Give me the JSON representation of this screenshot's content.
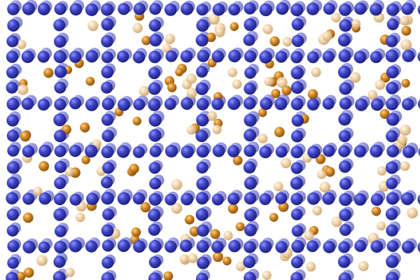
{
  "scene": {
    "background_color": "#ffffff",
    "lattice_atom": {
      "color_highlight": "#8c92ff",
      "color_mid": "#3f45c8",
      "color_shadow": "#1d1f78"
    },
    "interstitial_atom_dark": {
      "color_highlight": "#ffd27a",
      "color_mid": "#d58b2a",
      "color_shadow": "#8a520f"
    },
    "interstitial_atom_light": {
      "color_highlight": "#fff6e6",
      "color_mid": "#f2d3a6",
      "color_shadow": "#c9a26e"
    }
  }
}
